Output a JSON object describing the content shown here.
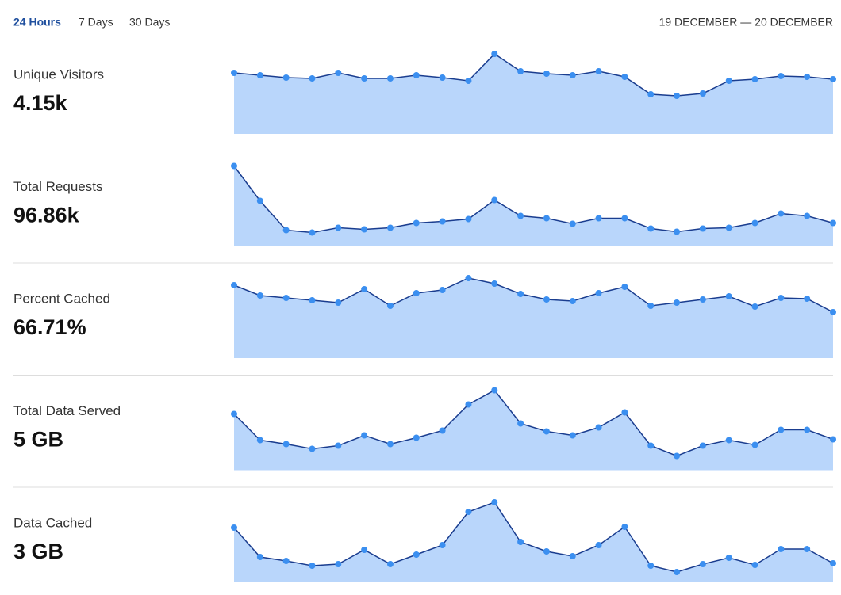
{
  "tabs": [
    "24 Hours",
    "7 Days",
    "30 Days"
  ],
  "date_range": "19 DECEMBER — 20 DECEMBER",
  "chart_data": [
    {
      "type": "area",
      "title": "Unique Visitors",
      "headline": "4.15k",
      "color": "#3b8ff0",
      "ylim": [
        0,
        105
      ],
      "values": [
        77,
        74,
        71,
        70,
        77,
        70,
        70,
        74,
        71,
        67,
        101,
        79,
        76,
        74,
        79,
        72,
        50,
        48,
        51,
        67,
        69,
        73,
        72,
        69
      ]
    },
    {
      "type": "area",
      "title": "Total Requests",
      "headline": "96.86k",
      "color": "#3b8ff0",
      "ylim": [
        0,
        105
      ],
      "values": [
        101,
        57,
        20,
        17,
        23,
        21,
        23,
        29,
        31,
        34,
        58,
        38,
        35,
        28,
        35,
        35,
        22,
        18,
        22,
        23,
        29,
        41,
        38,
        29
      ]
    },
    {
      "type": "area",
      "title": "Percent Cached",
      "headline": "66.71%",
      "color": "#3b8ff0",
      "ylim": [
        0,
        105
      ],
      "values": [
        92,
        79,
        76,
        73,
        70,
        87,
        66,
        82,
        86,
        101,
        94,
        81,
        74,
        72,
        82,
        90,
        66,
        70,
        74,
        78,
        65,
        76,
        75,
        58
      ]
    },
    {
      "type": "area",
      "title": "Total Data Served",
      "headline": "5 GB",
      "color": "#3b8ff0",
      "ylim": [
        0,
        105
      ],
      "values": [
        71,
        38,
        33,
        27,
        31,
        44,
        33,
        41,
        50,
        83,
        101,
        59,
        49,
        44,
        54,
        73,
        31,
        18,
        31,
        38,
        32,
        51,
        51,
        39
      ]
    },
    {
      "type": "area",
      "title": "Data Cached",
      "headline": "3 GB",
      "color": "#3b8ff0",
      "ylim": [
        0,
        105
      ],
      "values": [
        69,
        32,
        27,
        21,
        23,
        41,
        23,
        35,
        47,
        89,
        101,
        51,
        39,
        33,
        47,
        70,
        21,
        13,
        23,
        31,
        22,
        42,
        42,
        24
      ]
    }
  ]
}
